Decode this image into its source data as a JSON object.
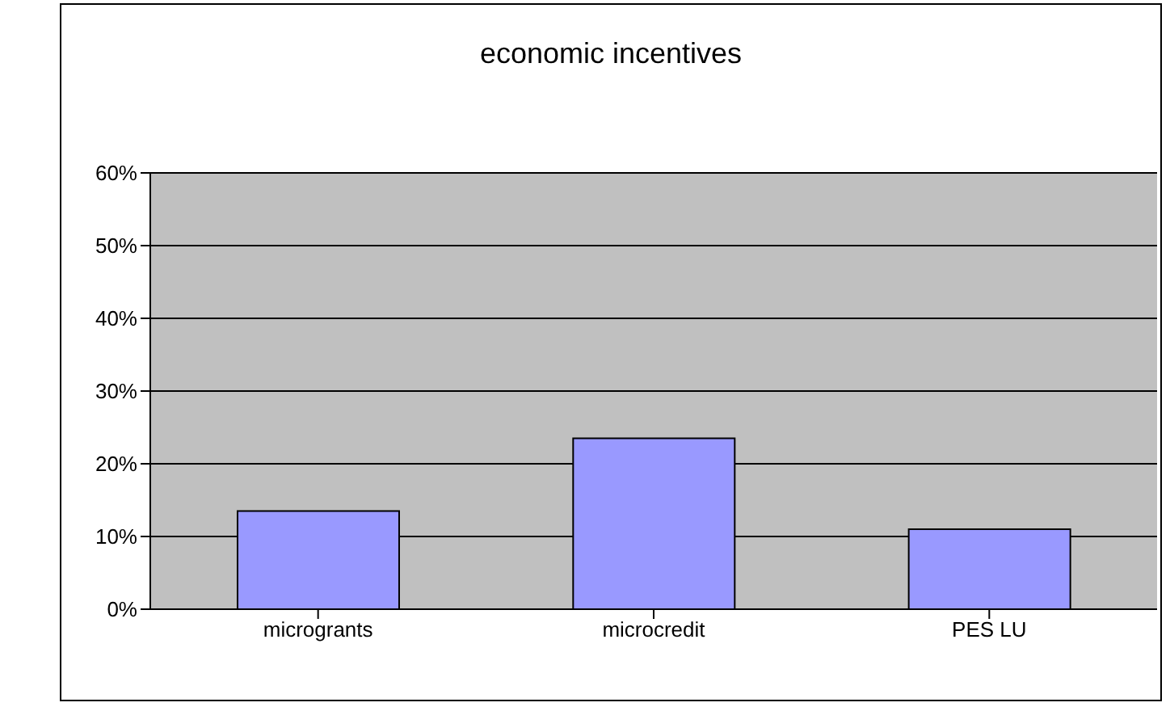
{
  "chart_data": {
    "type": "bar",
    "title": "economic incentives",
    "categories": [
      "microgrants",
      "microcredit",
      "PES LU"
    ],
    "values": [
      13.5,
      23.5,
      11
    ],
    "color": "#9999ff",
    "ylim": [
      0,
      60
    ],
    "yticks": [
      {
        "value": 0,
        "label": "0%"
      },
      {
        "value": 10,
        "label": "10%"
      },
      {
        "value": 20,
        "label": "20%"
      },
      {
        "value": 30,
        "label": "30%"
      },
      {
        "value": 40,
        "label": "40%"
      },
      {
        "value": 50,
        "label": "50%"
      },
      {
        "value": 60,
        "label": "60%"
      }
    ],
    "grid": "y"
  }
}
